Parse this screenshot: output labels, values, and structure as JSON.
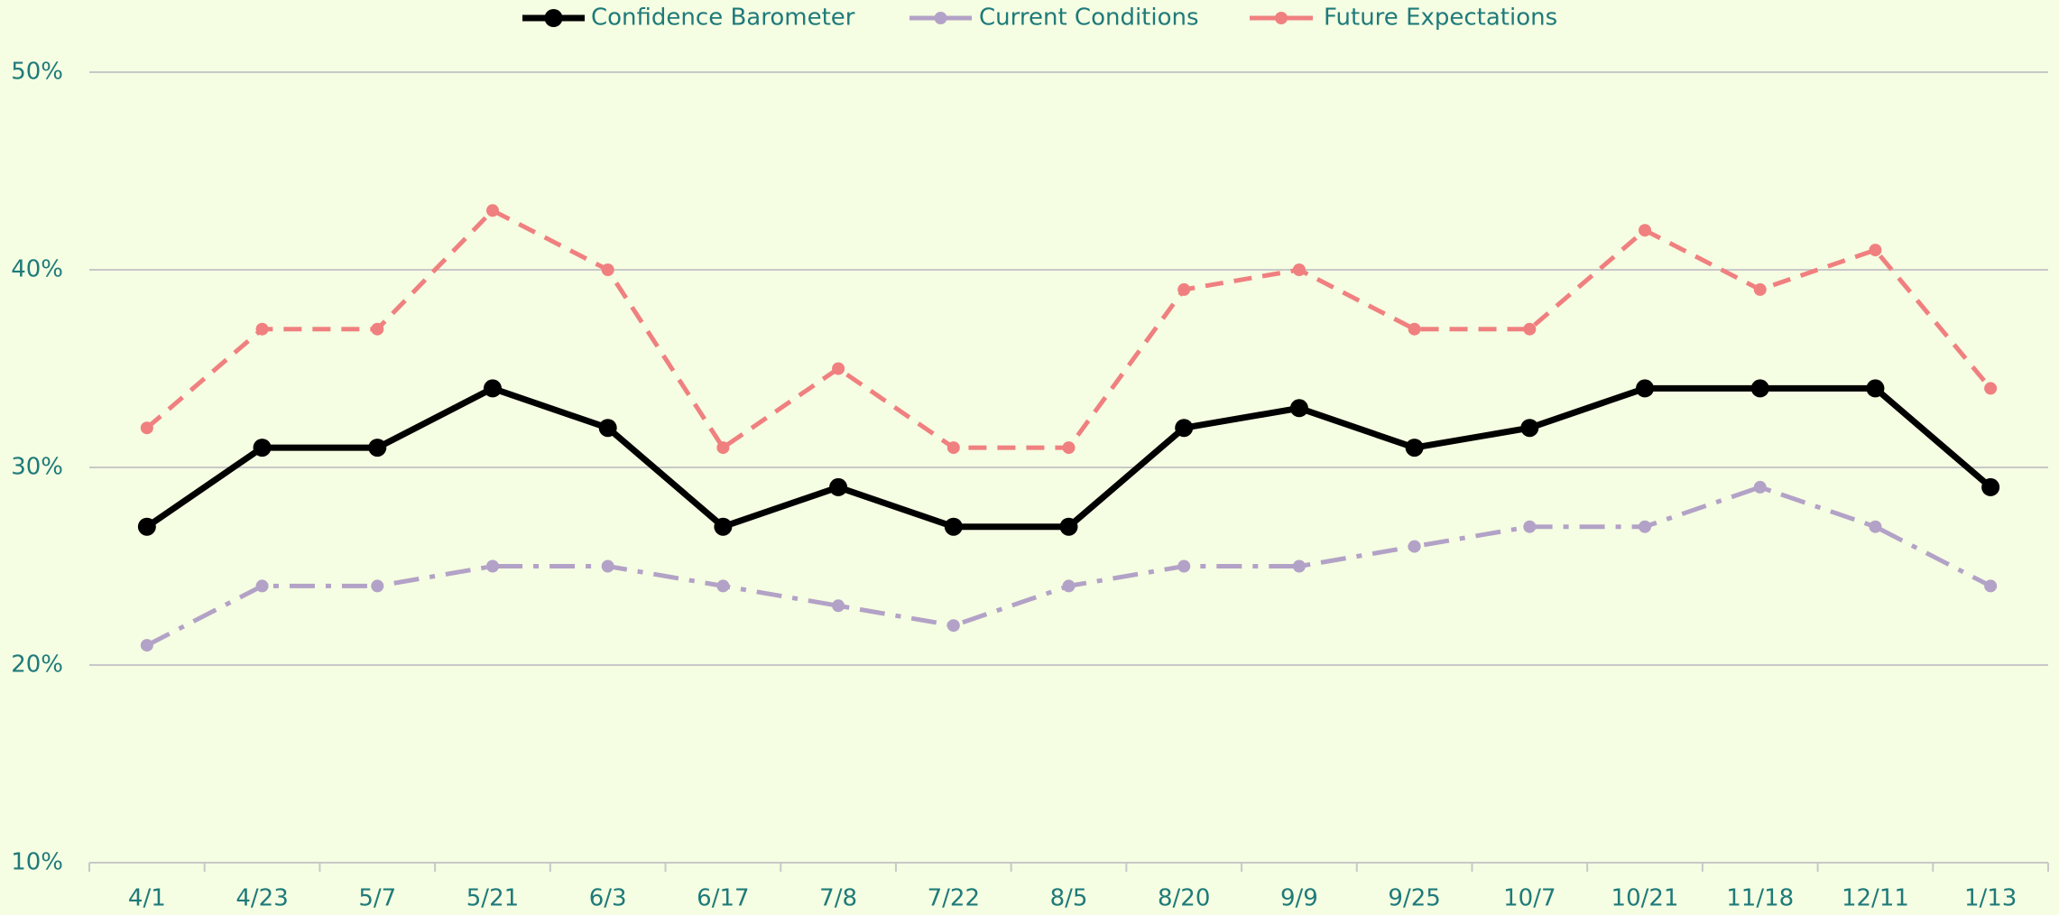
{
  "chart_data": {
    "type": "line",
    "categories": [
      "4/1",
      "4/23",
      "5/7",
      "5/21",
      "6/3",
      "6/17",
      "7/8",
      "7/22",
      "8/5",
      "8/20",
      "9/9",
      "9/25",
      "10/7",
      "10/21",
      "11/18",
      "12/11",
      "1/13"
    ],
    "series": [
      {
        "name": "Confidence Barometer",
        "color": "#000000",
        "values": [
          27,
          31,
          31,
          34,
          32,
          27,
          29,
          27,
          27,
          32,
          33,
          31,
          32,
          34,
          34,
          34,
          29
        ]
      },
      {
        "name": "Current Conditions",
        "color": "#b3a2c7",
        "values": [
          21,
          24,
          24,
          25,
          25,
          24,
          23,
          22,
          24,
          25,
          25,
          26,
          27,
          27,
          29,
          27,
          24
        ]
      },
      {
        "name": "Future Expectations",
        "color": "#f08080",
        "values": [
          32,
          37,
          37,
          43,
          40,
          31,
          35,
          31,
          31,
          39,
          40,
          37,
          37,
          42,
          39,
          41,
          34
        ]
      }
    ],
    "ylim": [
      10,
      50
    ],
    "yticks": [
      {
        "value": 10,
        "label": "10%"
      },
      {
        "value": 20,
        "label": "20%"
      },
      {
        "value": 30,
        "label": "30%"
      },
      {
        "value": 40,
        "label": "40%"
      },
      {
        "value": 50,
        "label": "50%"
      }
    ],
    "grid": true,
    "legend": "top"
  }
}
